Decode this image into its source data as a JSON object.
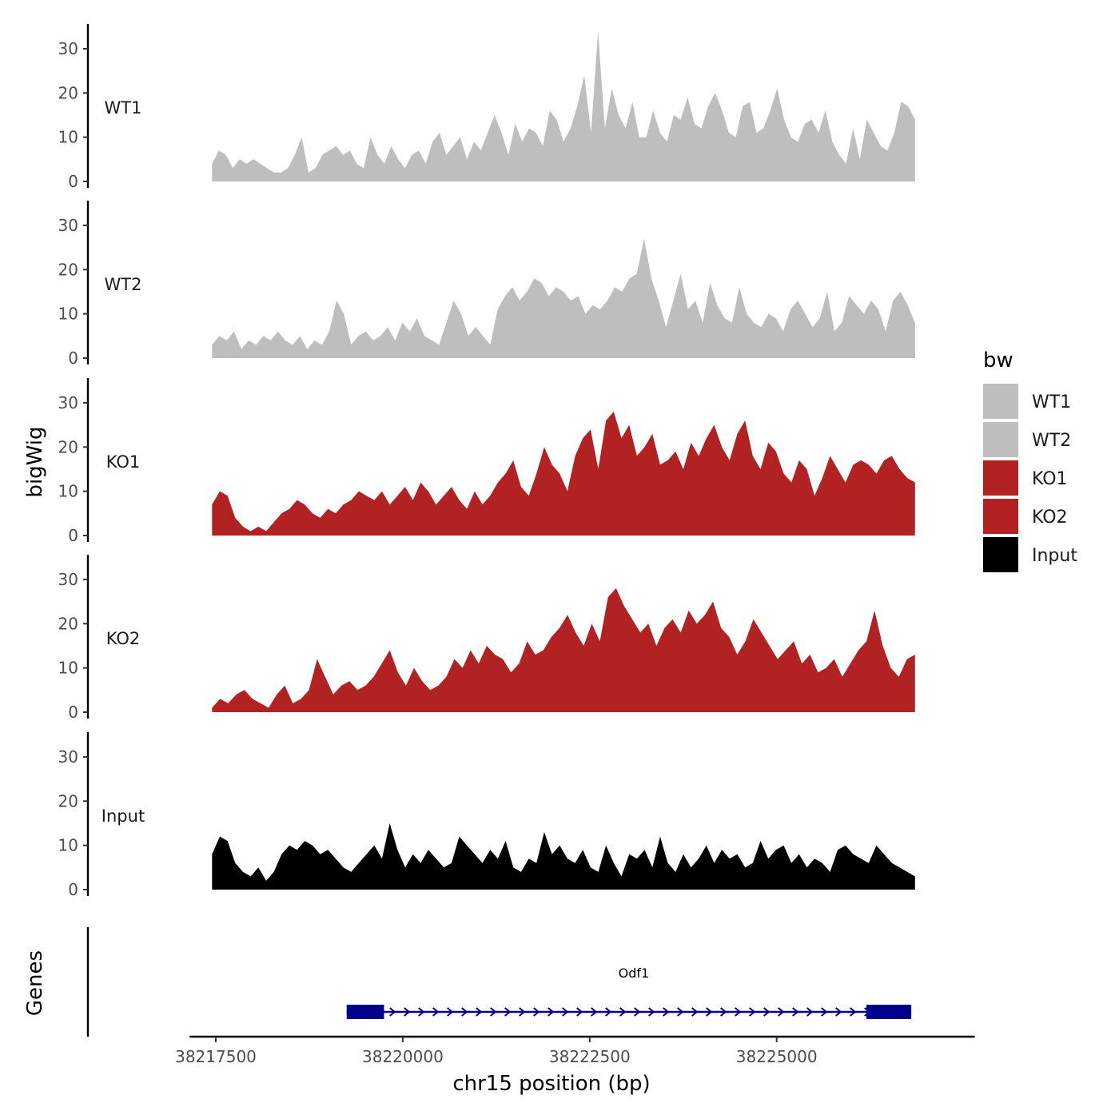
{
  "chart_data": {
    "type": "area",
    "ylabel": "bigWig",
    "xlabel": "chr15 position (bp)",
    "x_range": [
      38217450,
      38226850
    ],
    "x_axis_limits": [
      38217150,
      38227650
    ],
    "x_ticks": [
      {
        "value": 38217500,
        "label": "38217500"
      },
      {
        "value": 38220000,
        "label": "38220000"
      },
      {
        "value": 38222500,
        "label": "38222500"
      },
      {
        "value": 38225000,
        "label": "38225000"
      }
    ],
    "ylim": [
      0,
      36
    ],
    "y_ticks": [
      {
        "value": 0,
        "label": "0"
      },
      {
        "value": 10,
        "label": "10"
      },
      {
        "value": 20,
        "label": "20"
      },
      {
        "value": 30,
        "label": "30"
      }
    ],
    "tracks": [
      {
        "name": "WT1",
        "color": "#bebebe",
        "values": [
          4,
          7,
          6,
          3,
          5,
          4,
          5,
          4,
          3,
          2,
          2,
          3,
          6,
          10,
          2,
          3,
          6,
          7,
          8,
          6,
          7,
          4,
          3,
          10,
          6,
          4,
          8,
          5,
          3,
          6,
          7,
          4,
          9,
          11,
          6,
          8,
          10,
          5,
          9,
          7,
          11,
          15,
          11,
          6,
          13,
          9,
          12,
          11,
          8,
          16,
          14,
          9,
          12,
          17,
          24,
          11,
          34,
          12,
          21,
          15,
          12,
          18,
          10,
          10,
          16,
          11,
          9,
          15,
          14,
          19,
          13,
          12,
          17,
          20,
          16,
          11,
          10,
          17,
          18,
          11,
          12,
          16,
          21,
          14,
          10,
          9,
          13,
          14,
          11,
          16,
          9,
          6,
          4,
          12,
          5,
          14,
          11,
          8,
          7,
          11,
          18,
          17,
          14
        ]
      },
      {
        "name": "WT2",
        "color": "#bebebe",
        "values": [
          3,
          5,
          4,
          6,
          2,
          4,
          3,
          5,
          4,
          6,
          4,
          3,
          5,
          2,
          4,
          3,
          6,
          13,
          10,
          3,
          5,
          6,
          4,
          5,
          7,
          4,
          8,
          6,
          9,
          5,
          4,
          3,
          8,
          13,
          10,
          5,
          7,
          5,
          3,
          11,
          14,
          16,
          13,
          15,
          18,
          17,
          14,
          16,
          15,
          13,
          14,
          10,
          12,
          11,
          13,
          16,
          15,
          18,
          19,
          27,
          18,
          13,
          7,
          13,
          19,
          11,
          13,
          8,
          17,
          12,
          9,
          8,
          16,
          10,
          8,
          7,
          10,
          9,
          6,
          11,
          13,
          10,
          7,
          9,
          15,
          6,
          8,
          14,
          12,
          10,
          13,
          11,
          6,
          13,
          15,
          12,
          8
        ]
      },
      {
        "name": "KO1",
        "color": "#b22222",
        "values": [
          7,
          10,
          9,
          4,
          2,
          1,
          2,
          1,
          3,
          5,
          6,
          8,
          7,
          5,
          4,
          6,
          5,
          7,
          8,
          10,
          9,
          8,
          10,
          7,
          9,
          11,
          8,
          12,
          10,
          7,
          9,
          11,
          8,
          6,
          10,
          7,
          9,
          12,
          14,
          17,
          11,
          9,
          14,
          20,
          16,
          14,
          10,
          18,
          22,
          24,
          15,
          26,
          28,
          22,
          25,
          18,
          20,
          23,
          16,
          17,
          19,
          15,
          21,
          18,
          22,
          25,
          20,
          17,
          23,
          26,
          18,
          15,
          21,
          19,
          14,
          12,
          17,
          15,
          9,
          13,
          18,
          15,
          12,
          16,
          17,
          16,
          14,
          17,
          18,
          15,
          13,
          12
        ]
      },
      {
        "name": "KO2",
        "color": "#b22222",
        "values": [
          1,
          3,
          2,
          4,
          5,
          3,
          2,
          1,
          4,
          6,
          2,
          3,
          5,
          12,
          8,
          4,
          6,
          7,
          5,
          6,
          8,
          11,
          14,
          9,
          6,
          10,
          7,
          5,
          6,
          8,
          12,
          10,
          14,
          11,
          15,
          13,
          12,
          9,
          11,
          16,
          13,
          14,
          17,
          19,
          22,
          18,
          15,
          20,
          16,
          26,
          28,
          24,
          21,
          18,
          20,
          15,
          19,
          21,
          18,
          23,
          20,
          22,
          25,
          19,
          17,
          13,
          16,
          21,
          18,
          15,
          12,
          14,
          16,
          11,
          13,
          9,
          10,
          12,
          8,
          11,
          14,
          16,
          23,
          15,
          10,
          8,
          12,
          13
        ]
      },
      {
        "name": "Input",
        "color": "#000000",
        "values": [
          8,
          12,
          11,
          6,
          4,
          3,
          5,
          2,
          4,
          8,
          10,
          9,
          11,
          10,
          8,
          9,
          7,
          5,
          4,
          6,
          8,
          10,
          7,
          15,
          9,
          5,
          8,
          6,
          9,
          7,
          5,
          6,
          12,
          10,
          8,
          6,
          9,
          7,
          11,
          5,
          4,
          7,
          6,
          13,
          8,
          10,
          7,
          6,
          9,
          5,
          4,
          10,
          6,
          3,
          8,
          7,
          9,
          5,
          12,
          6,
          4,
          8,
          5,
          7,
          10,
          6,
          9,
          7,
          8,
          5,
          6,
          11,
          7,
          9,
          10,
          6,
          8,
          5,
          7,
          6,
          4,
          9,
          10,
          8,
          7,
          6,
          10,
          8,
          6,
          5,
          4,
          3
        ]
      }
    ],
    "legend": {
      "title": "bw",
      "position": "right",
      "entries": [
        {
          "label": "WT1",
          "color": "#bebebe"
        },
        {
          "label": "WT2",
          "color": "#bebebe"
        },
        {
          "label": "KO1",
          "color": "#b22222"
        },
        {
          "label": "KO2",
          "color": "#b22222"
        },
        {
          "label": "Input",
          "color": "#000000"
        }
      ]
    },
    "genes": {
      "track_label": "Genes",
      "items": [
        {
          "name": "Odf1",
          "color": "#00008b",
          "start": 38219250,
          "end": 38226800,
          "strand": "+",
          "exons": [
            [
              38219250,
              38219750
            ],
            [
              38226200,
              38226800
            ]
          ]
        }
      ]
    }
  }
}
